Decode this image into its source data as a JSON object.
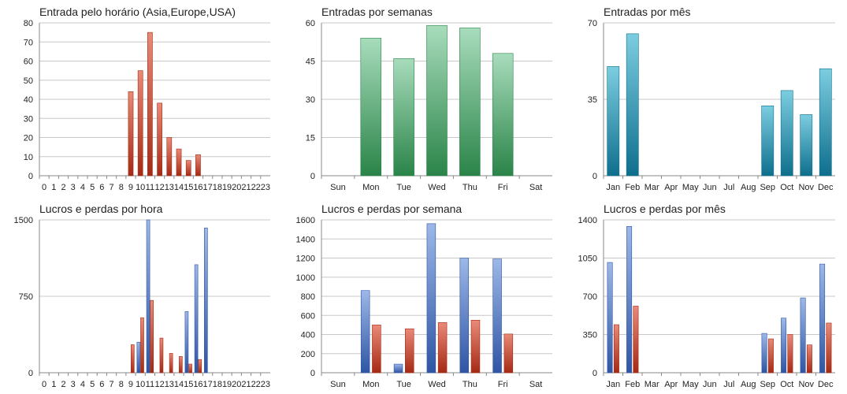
{
  "colors": {
    "red_top": "#e98a78",
    "red_bottom": "#a52a14",
    "green_top": "#a8dcbc",
    "green_bottom": "#2a8448",
    "teal_top": "#7ccde0",
    "teal_bottom": "#0e6f8d",
    "blue_top": "#9db8e8",
    "blue_bottom": "#2f55a4",
    "grid": "#c8c8c8",
    "axis": "#888888"
  },
  "chart_data": [
    {
      "type": "bar",
      "title": "Entrada pelo horário (Asia,Europe,USA)",
      "categories": [
        "0",
        "1",
        "2",
        "3",
        "4",
        "5",
        "6",
        "7",
        "8",
        "9",
        "10",
        "11",
        "12",
        "13",
        "14",
        "15",
        "16",
        "17",
        "18",
        "19",
        "20",
        "21",
        "22",
        "23"
      ],
      "series": [
        {
          "values": [
            0,
            0,
            0,
            0,
            0,
            0,
            0,
            0,
            0,
            44,
            55,
            75,
            38,
            20,
            14,
            8,
            11,
            0,
            0,
            0,
            0,
            0,
            0,
            0
          ],
          "color": "red"
        }
      ],
      "yticks": [
        0,
        10,
        20,
        30,
        40,
        50,
        60,
        70,
        80
      ],
      "ylim": [
        0,
        80
      ],
      "grid": true
    },
    {
      "type": "bar",
      "title": "Entradas por semanas",
      "categories": [
        "Sun",
        "Mon",
        "Tue",
        "Wed",
        "Thu",
        "Fri",
        "Sat"
      ],
      "series": [
        {
          "values": [
            0,
            54,
            46,
            59,
            58,
            48,
            0
          ],
          "color": "green"
        }
      ],
      "yticks": [
        0,
        15,
        30,
        45,
        60
      ],
      "ylim": [
        0,
        60
      ],
      "grid": true
    },
    {
      "type": "bar",
      "title": "Entradas por mês",
      "categories": [
        "Jan",
        "Feb",
        "Mar",
        "Apr",
        "May",
        "Jun",
        "Jul",
        "Aug",
        "Sep",
        "Oct",
        "Nov",
        "Dec"
      ],
      "series": [
        {
          "values": [
            50,
            65,
            0,
            0,
            0,
            0,
            0,
            0,
            32,
            39,
            28,
            49
          ],
          "color": "teal"
        }
      ],
      "yticks": [
        0,
        35,
        70
      ],
      "ylim": [
        0,
        70
      ],
      "grid": true
    },
    {
      "type": "bar",
      "title": "Lucros e perdas por hora",
      "categories": [
        "0",
        "1",
        "2",
        "3",
        "4",
        "5",
        "6",
        "7",
        "8",
        "9",
        "10",
        "11",
        "12",
        "13",
        "14",
        "15",
        "16",
        "17",
        "18",
        "19",
        "20",
        "21",
        "22",
        "23"
      ],
      "series": [
        {
          "values": [
            0,
            0,
            0,
            0,
            0,
            0,
            0,
            0,
            0,
            0,
            300,
            1500,
            0,
            0,
            0,
            600,
            1060,
            1420,
            0,
            0,
            0,
            0,
            0,
            0
          ],
          "color": "blue"
        },
        {
          "values": [
            0,
            0,
            0,
            0,
            0,
            0,
            0,
            0,
            0,
            275,
            540,
            710,
            340,
            190,
            160,
            85,
            130,
            0,
            0,
            0,
            0,
            0,
            0,
            0
          ],
          "color": "red"
        }
      ],
      "yticks": [
        0,
        750,
        1500
      ],
      "ylim": [
        0,
        1500
      ],
      "grid": true
    },
    {
      "type": "bar",
      "title": "Lucros e perdas por semana",
      "categories": [
        "Sun",
        "Mon",
        "Tue",
        "Wed",
        "Thu",
        "Fri",
        "Sat"
      ],
      "series": [
        {
          "values": [
            0,
            860,
            90,
            1560,
            1200,
            1190,
            0
          ],
          "color": "blue"
        },
        {
          "values": [
            0,
            500,
            460,
            525,
            550,
            405,
            0
          ],
          "color": "red"
        }
      ],
      "yticks": [
        0,
        200,
        400,
        600,
        800,
        1000,
        1200,
        1400,
        1600
      ],
      "ylim": [
        0,
        1600
      ],
      "grid": true
    },
    {
      "type": "bar",
      "title": "Lucros e perdas por mês",
      "categories": [
        "Jan",
        "Feb",
        "Mar",
        "Apr",
        "May",
        "Jun",
        "Jul",
        "Aug",
        "Sep",
        "Oct",
        "Nov",
        "Dec"
      ],
      "series": [
        {
          "values": [
            1010,
            1340,
            0,
            0,
            0,
            0,
            0,
            0,
            360,
            500,
            685,
            995
          ],
          "color": "blue"
        },
        {
          "values": [
            440,
            610,
            0,
            0,
            0,
            0,
            0,
            0,
            310,
            350,
            255,
            455
          ],
          "color": "red"
        }
      ],
      "yticks": [
        0,
        350,
        700,
        1050,
        1400
      ],
      "ylim": [
        0,
        1400
      ],
      "grid": true
    }
  ]
}
